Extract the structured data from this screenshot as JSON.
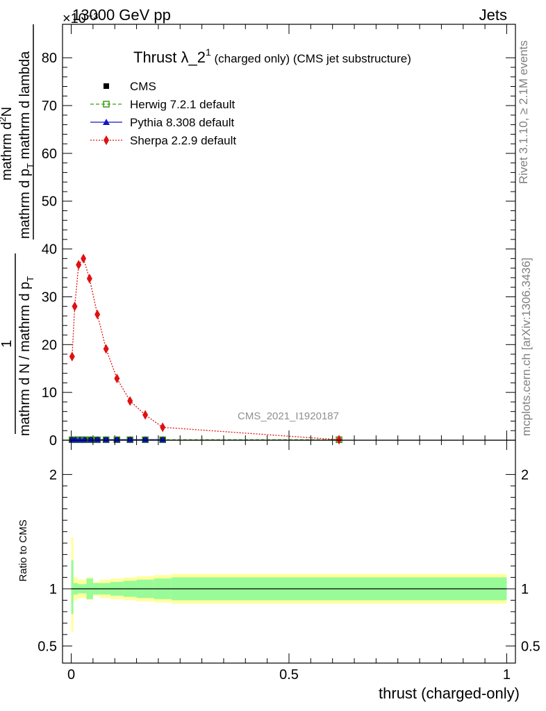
{
  "header": {
    "left": "13000 GeV pp",
    "right": "Jets",
    "multiplier": "×10⁻³",
    "rivet": "Rivet 3.1.10, ≥ 2.1M events",
    "mcplots": "mcplots.cern.ch [arXiv:1306.3436]",
    "analysis": "CMS_2021_I1920187"
  },
  "plot_title": {
    "main": "Thrust λ_2",
    "sup": "1",
    "rest": " (charged only) (CMS jet substructure)"
  },
  "ylabel_main": {
    "lead": "1",
    "top": "mathrm d N / mathrm d p",
    "top_sub": "T",
    "bottom_a": "mathrm dN",
    "bottom_b": "mathrm d p",
    "bottom_sub": "T",
    "bottom_c": " mathrm d lambda",
    "frac_top": "mathrm d",
    "frac_sup": "2",
    "frac_tail": "N"
  },
  "ylabel_ratio": "Ratio to CMS",
  "xlabel": "thrust (charged-only)",
  "legend": [
    {
      "label": "CMS",
      "color": "#000000",
      "marker": "square-filled"
    },
    {
      "label": "Herwig 7.2.1 default",
      "color": "#3a9a1a",
      "marker": "square-open"
    },
    {
      "label": "Pythia 8.308 default",
      "color": "#1414c8",
      "marker": "triangle"
    },
    {
      "label": "Sherpa 2.2.9 default",
      "color": "#e01010",
      "marker": "diamond"
    }
  ],
  "chart_data": [
    {
      "type": "line",
      "title": "Thrust λ_2^1 (charged only) (CMS jet substructure)",
      "xlim": [
        -0.02,
        1.02
      ],
      "ylim": [
        0,
        87
      ],
      "y_unit_multiplier": "×10⁻³",
      "xticks": [
        "0",
        "0.5",
        "1"
      ],
      "yticks": [
        "0",
        "10",
        "20",
        "30",
        "40",
        "50",
        "60",
        "70",
        "80"
      ],
      "series": [
        {
          "name": "CMS",
          "x": [
            0.002,
            0.01,
            0.02,
            0.03,
            0.045,
            0.06,
            0.08,
            0.105,
            0.135,
            0.17,
            0.21
          ],
          "y": [
            0.1,
            0.1,
            0.1,
            0.1,
            0.1,
            0.1,
            0.1,
            0.1,
            0.1,
            0.1,
            0.1
          ]
        },
        {
          "name": "Herwig 7.2.1 default",
          "x": [
            0.002,
            0.01,
            0.02,
            0.03,
            0.045,
            0.06,
            0.08,
            0.105,
            0.135,
            0.17,
            0.21,
            0.615
          ],
          "y": [
            0.1,
            0.1,
            0.1,
            0.1,
            0.1,
            0.1,
            0.1,
            0.1,
            0.1,
            0.1,
            0.1,
            0.1
          ]
        },
        {
          "name": "Pythia 8.308 default",
          "x": [
            0.002,
            0.01,
            0.02,
            0.03,
            0.045,
            0.06,
            0.08,
            0.105,
            0.135,
            0.17,
            0.21
          ],
          "y": [
            0.1,
            0.1,
            0.1,
            0.1,
            0.1,
            0.1,
            0.1,
            0.1,
            0.1,
            0.1,
            0.1
          ]
        },
        {
          "name": "Sherpa 2.2.9 default",
          "x": [
            0.002,
            0.008,
            0.017,
            0.028,
            0.042,
            0.06,
            0.08,
            0.105,
            0.135,
            0.17,
            0.21,
            0.615
          ],
          "y": [
            17.5,
            28.0,
            36.7,
            38.0,
            33.8,
            26.3,
            19.1,
            12.9,
            8.2,
            5.3,
            2.7,
            0.1
          ]
        }
      ]
    },
    {
      "type": "area",
      "ylabel": "Ratio to CMS",
      "xlim": [
        -0.02,
        1.02
      ],
      "ylim": [
        0.35,
        2.3
      ],
      "xticks": [
        "0",
        "0.5",
        "1"
      ],
      "yticks": [
        "0.5",
        "1",
        "2"
      ],
      "bin_edges": [
        0.0,
        0.005,
        0.015,
        0.035,
        0.05,
        0.065,
        0.09,
        0.12,
        0.15,
        0.19,
        0.23,
        1.0
      ],
      "stat_band": [
        [
          0.78,
          1.25
        ],
        [
          0.95,
          1.05
        ],
        [
          0.96,
          1.04
        ],
        [
          0.91,
          1.09
        ],
        [
          0.95,
          1.05
        ],
        [
          0.95,
          1.05
        ],
        [
          0.94,
          1.06
        ],
        [
          0.93,
          1.07
        ],
        [
          0.92,
          1.08
        ],
        [
          0.91,
          1.09
        ],
        [
          0.9,
          1.1
        ]
      ],
      "total_band": [
        [
          0.62,
          1.45
        ],
        [
          0.9,
          1.1
        ],
        [
          0.92,
          1.08
        ],
        [
          0.9,
          1.1
        ],
        [
          0.94,
          1.06
        ],
        [
          0.92,
          1.08
        ],
        [
          0.91,
          1.09
        ],
        [
          0.9,
          1.1
        ],
        [
          0.89,
          1.11
        ],
        [
          0.88,
          1.12
        ],
        [
          0.87,
          1.13
        ]
      ],
      "reference": 1.0
    }
  ],
  "colors": {
    "stat": "#98fb98",
    "total": "#ffff9e"
  }
}
